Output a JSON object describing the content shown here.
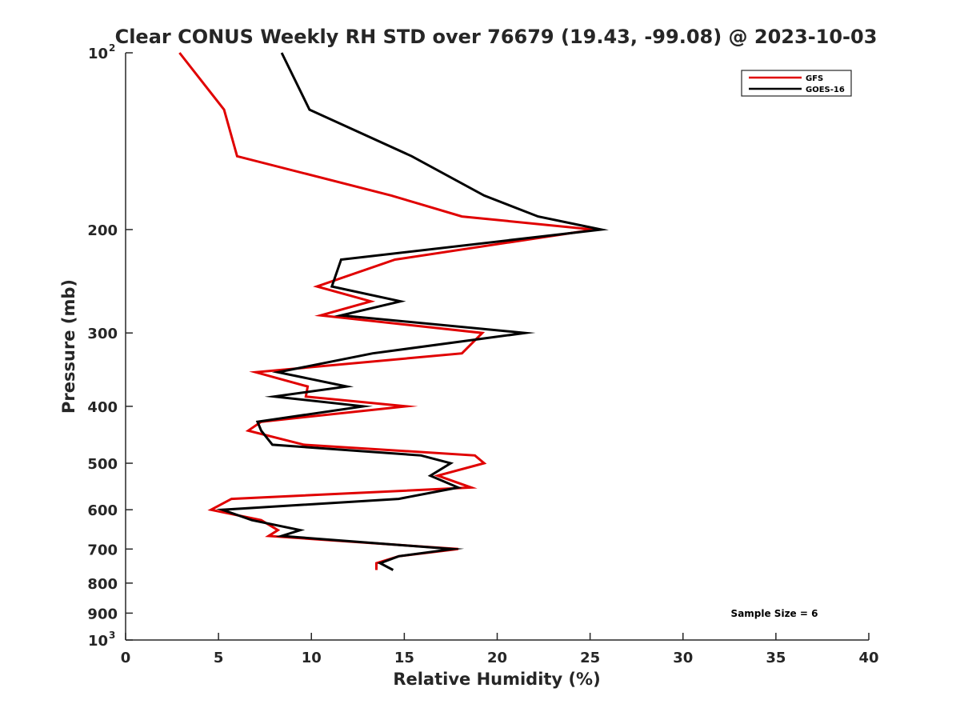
{
  "chart_data": {
    "type": "line",
    "title": "Clear CONUS Weekly RH STD over 76679 (19.43, -99.08) @ 2023-10-03",
    "xlabel": "Relative Humidity (%)",
    "ylabel": "Pressure (mb)",
    "xlim": [
      0,
      40
    ],
    "ylim": [
      100,
      1000
    ],
    "y_scale": "log",
    "y_reversed": true,
    "grid": false,
    "legend_position": "top-right",
    "x_ticks": [
      {
        "value": 0,
        "label": "0"
      },
      {
        "value": 5,
        "label": "5"
      },
      {
        "value": 10,
        "label": "10"
      },
      {
        "value": 15,
        "label": "15"
      },
      {
        "value": 20,
        "label": "20"
      },
      {
        "value": 25,
        "label": "25"
      },
      {
        "value": 30,
        "label": "30"
      },
      {
        "value": 35,
        "label": "35"
      },
      {
        "value": 40,
        "label": "40"
      }
    ],
    "y_ticks": [
      {
        "value": 100,
        "base": "10",
        "exp": "2"
      },
      {
        "value": 200,
        "label": "200"
      },
      {
        "value": 300,
        "label": "300"
      },
      {
        "value": 400,
        "label": "400"
      },
      {
        "value": 500,
        "label": "500"
      },
      {
        "value": 600,
        "label": "600"
      },
      {
        "value": 700,
        "label": "700"
      },
      {
        "value": 800,
        "label": "800"
      },
      {
        "value": 900,
        "label": "900"
      },
      {
        "value": 1000,
        "base": "10",
        "exp": "3"
      }
    ],
    "series": [
      {
        "name": "GFS",
        "color": "#e00000",
        "points": [
          {
            "x": 2.9,
            "y": 100
          },
          {
            "x": 5.3,
            "y": 125
          },
          {
            "x": 6.0,
            "y": 150
          },
          {
            "x": 14.3,
            "y": 175
          },
          {
            "x": 18.1,
            "y": 190
          },
          {
            "x": 25.2,
            "y": 200
          },
          {
            "x": 14.5,
            "y": 225
          },
          {
            "x": 10.3,
            "y": 250
          },
          {
            "x": 13.2,
            "y": 265
          },
          {
            "x": 10.5,
            "y": 280
          },
          {
            "x": 19.2,
            "y": 300
          },
          {
            "x": 18.1,
            "y": 325
          },
          {
            "x": 7.0,
            "y": 350
          },
          {
            "x": 9.8,
            "y": 370
          },
          {
            "x": 9.7,
            "y": 385
          },
          {
            "x": 15.1,
            "y": 400
          },
          {
            "x": 7.3,
            "y": 425
          },
          {
            "x": 6.6,
            "y": 440
          },
          {
            "x": 9.6,
            "y": 465
          },
          {
            "x": 18.8,
            "y": 485
          },
          {
            "x": 19.3,
            "y": 500
          },
          {
            "x": 16.8,
            "y": 525
          },
          {
            "x": 18.6,
            "y": 550
          },
          {
            "x": 5.7,
            "y": 575
          },
          {
            "x": 4.6,
            "y": 600
          },
          {
            "x": 7.3,
            "y": 625
          },
          {
            "x": 8.2,
            "y": 650
          },
          {
            "x": 7.7,
            "y": 665
          },
          {
            "x": 17.9,
            "y": 700
          },
          {
            "x": 14.7,
            "y": 720
          },
          {
            "x": 13.5,
            "y": 740
          },
          {
            "x": 13.5,
            "y": 760
          }
        ]
      },
      {
        "name": "GOES-16",
        "color": "#000000",
        "points": [
          {
            "x": 8.4,
            "y": 100
          },
          {
            "x": 9.9,
            "y": 125
          },
          {
            "x": 15.4,
            "y": 150
          },
          {
            "x": 19.3,
            "y": 175
          },
          {
            "x": 22.2,
            "y": 190
          },
          {
            "x": 25.6,
            "y": 200
          },
          {
            "x": 11.6,
            "y": 225
          },
          {
            "x": 11.1,
            "y": 250
          },
          {
            "x": 14.8,
            "y": 265
          },
          {
            "x": 11.6,
            "y": 280
          },
          {
            "x": 21.5,
            "y": 300
          },
          {
            "x": 13.3,
            "y": 325
          },
          {
            "x": 8.2,
            "y": 350
          },
          {
            "x": 11.9,
            "y": 370
          },
          {
            "x": 8.0,
            "y": 385
          },
          {
            "x": 12.8,
            "y": 400
          },
          {
            "x": 7.1,
            "y": 425
          },
          {
            "x": 7.3,
            "y": 440
          },
          {
            "x": 7.9,
            "y": 465
          },
          {
            "x": 15.9,
            "y": 485
          },
          {
            "x": 17.5,
            "y": 500
          },
          {
            "x": 16.4,
            "y": 525
          },
          {
            "x": 17.9,
            "y": 550
          },
          {
            "x": 14.7,
            "y": 575
          },
          {
            "x": 5.2,
            "y": 600
          },
          {
            "x": 6.8,
            "y": 625
          },
          {
            "x": 9.4,
            "y": 650
          },
          {
            "x": 8.4,
            "y": 665
          },
          {
            "x": 17.6,
            "y": 700
          },
          {
            "x": 14.7,
            "y": 720
          },
          {
            "x": 13.7,
            "y": 740
          },
          {
            "x": 14.4,
            "y": 760
          }
        ]
      }
    ],
    "annotation": "Sample Size = 6"
  }
}
